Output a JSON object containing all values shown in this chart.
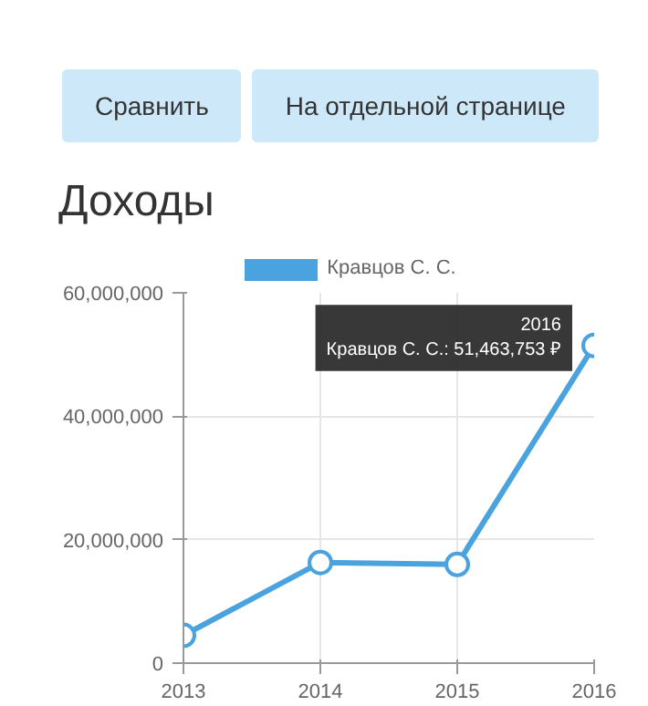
{
  "chart_data": {
    "type": "line",
    "title": "Доходы",
    "annotations": [
      "Сравнить",
      "На отдельной странице",
      {
        "text": "2016\nКравцов С. С.: 51,463,753 ₽",
        "x": 2016,
        "y": 51463753
      }
    ],
    "x": [
      2013,
      2014,
      2015,
      2016
    ],
    "series": [
      {
        "name": "Кравцов С. С.",
        "color": "#4aa3df",
        "values": [
          4500000,
          16300000,
          16000000,
          51463753
        ]
      }
    ],
    "xlim": [
      2013,
      2016
    ],
    "xticks": [
      2013,
      2014,
      2015,
      2016
    ],
    "ylim": [
      0,
      60000000
    ],
    "yticks": [
      {
        "value": 0,
        "label": "0"
      },
      {
        "value": 20000000,
        "label": "20,000,000"
      },
      {
        "value": 40000000,
        "label": "40,000,000"
      },
      {
        "value": 60000000,
        "label": "60,000,000"
      }
    ],
    "grid": true,
    "legend": "top",
    "marker": "circle",
    "line_style": "solid"
  }
}
